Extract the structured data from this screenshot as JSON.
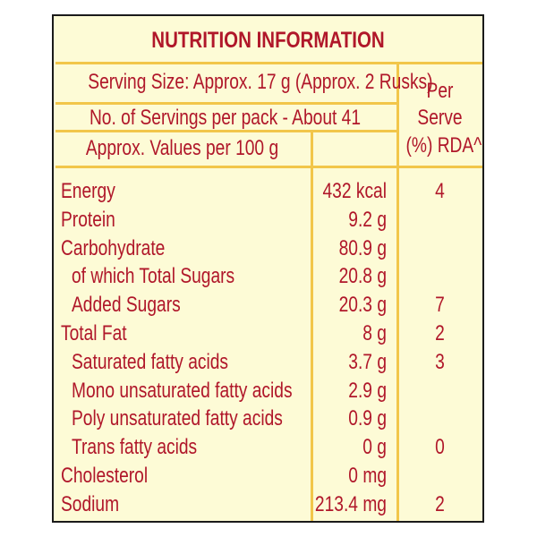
{
  "title": "NUTRITION INFORMATION",
  "serving_size": "Serving Size: Approx. 17 g (Approx. 2 Rusks)",
  "servings_per_pack": "No. of Servings per pack - About 41",
  "values_per": "Approx. Values per 100 g",
  "per_serve_header": [
    "Per",
    "Serve",
    "(%) RDA^"
  ],
  "rows": [
    {
      "nutrient": "Energy",
      "value": "432 kcal",
      "rda": "4",
      "indent": false
    },
    {
      "nutrient": "Protein",
      "value": "9.2 g",
      "rda": "",
      "indent": false
    },
    {
      "nutrient": "Carbohydrate",
      "value": "80.9 g",
      "rda": "",
      "indent": false
    },
    {
      "nutrient": "of which Total Sugars",
      "value": "20.8 g",
      "rda": "",
      "indent": true
    },
    {
      "nutrient": "Added Sugars",
      "value": "20.3 g",
      "rda": "7",
      "indent": true
    },
    {
      "nutrient": "Total Fat",
      "value": "8 g",
      "rda": "2",
      "indent": false
    },
    {
      "nutrient": "Saturated fatty acids",
      "value": "3.7 g",
      "rda": "3",
      "indent": true
    },
    {
      "nutrient": "Mono unsaturated fatty acids",
      "value": "2.9 g",
      "rda": "",
      "indent": true
    },
    {
      "nutrient": "Poly unsaturated fatty acids",
      "value": "0.9 g",
      "rda": "",
      "indent": true
    },
    {
      "nutrient": "Trans fatty acids",
      "value": "0 g",
      "rda": "0",
      "indent": true
    },
    {
      "nutrient": "Cholesterol",
      "value": "0 mg",
      "rda": "",
      "indent": false
    },
    {
      "nutrient": "Sodium",
      "value": "213.4 mg",
      "rda": "2",
      "indent": false
    }
  ],
  "colors": {
    "text": "#b0172a",
    "lines": "#f2c64a",
    "background": "#fdfbd6",
    "border": "#1a1a1a"
  }
}
